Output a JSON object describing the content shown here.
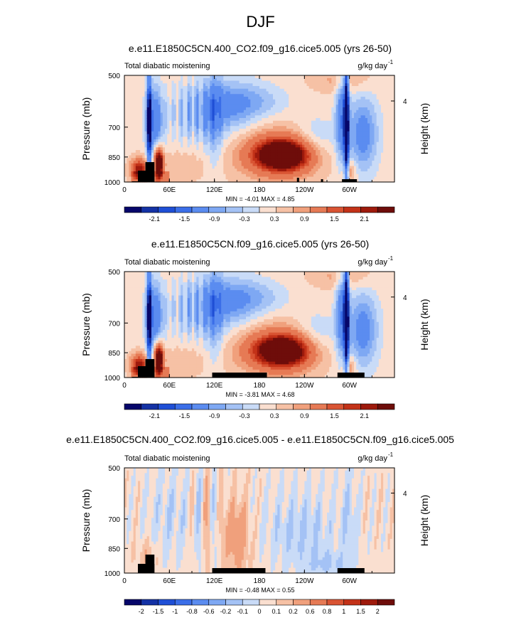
{
  "figure": {
    "season": "DJF"
  },
  "chart_data": [
    {
      "type": "heatmap",
      "title": "e.e11.E1850C5CN.400_CO2.f09_g16.cice5.005 (yrs 26-50)",
      "left_string": "Total diabatic moistening",
      "right_string": "g/kg day",
      "right_string_sup": "-1",
      "ylabel": "Pressure (mb)",
      "ylabel_right": "Height (km)",
      "x_ticks": [
        "0",
        "60E",
        "120E",
        "180",
        "120W",
        "60W"
      ],
      "x_tick_values": [
        0,
        60,
        120,
        180,
        240,
        300
      ],
      "xlim": [
        0,
        360
      ],
      "y_ticks": [
        "500",
        "700",
        "850",
        "1000"
      ],
      "y_tick_values": [
        500,
        700,
        850,
        1000
      ],
      "ylim": [
        1000,
        500
      ],
      "y_scale": "log",
      "height_ticks": [
        "4"
      ],
      "height_tick_values": [
        4
      ],
      "stats": "MIN = -4.01  MAX =  4.85",
      "colorbar_labels": [
        "-2.1",
        "-1.5",
        "-0.9",
        "-0.3",
        "0.3",
        "0.9",
        "1.5",
        "2.1"
      ],
      "levels": [
        -2.4,
        -2.1,
        -1.8,
        -1.5,
        -1.2,
        -0.9,
        -0.6,
        -0.3,
        0,
        0.3,
        0.6,
        0.9,
        1.2,
        1.5,
        1.8,
        2.1,
        2.4
      ],
      "min": -4.01,
      "max": 4.85
    },
    {
      "type": "heatmap",
      "title": "e.e11.E1850C5CN.f09_g16.cice5.005 (yrs 26-50)",
      "left_string": "Total diabatic moistening",
      "right_string": "g/kg day",
      "right_string_sup": "-1",
      "ylabel": "Pressure (mb)",
      "ylabel_right": "Height (km)",
      "x_ticks": [
        "0",
        "60E",
        "120E",
        "180",
        "120W",
        "60W"
      ],
      "x_tick_values": [
        0,
        60,
        120,
        180,
        240,
        300
      ],
      "xlim": [
        0,
        360
      ],
      "y_ticks": [
        "500",
        "700",
        "850",
        "1000"
      ],
      "y_tick_values": [
        500,
        700,
        850,
        1000
      ],
      "ylim": [
        1000,
        500
      ],
      "y_scale": "log",
      "height_ticks": [
        "4"
      ],
      "height_tick_values": [
        4
      ],
      "stats": "MIN = -3.81  MAX =  4.68",
      "colorbar_labels": [
        "-2.1",
        "-1.5",
        "-0.9",
        "-0.3",
        "0.3",
        "0.9",
        "1.5",
        "2.1"
      ],
      "levels": [
        -2.4,
        -2.1,
        -1.8,
        -1.5,
        -1.2,
        -0.9,
        -0.6,
        -0.3,
        0,
        0.3,
        0.6,
        0.9,
        1.2,
        1.5,
        1.8,
        2.1,
        2.4
      ],
      "min": -3.81,
      "max": 4.68
    },
    {
      "type": "heatmap",
      "title": "e.e11.E1850C5CN.400_CO2.f09_g16.cice5.005 - e.e11.E1850C5CN.f09_g16.cice5.005",
      "left_string": "Total diabatic moistening",
      "right_string": "g/kg day",
      "right_string_sup": "-1",
      "ylabel": "Pressure (mb)",
      "ylabel_right": "Height (km)",
      "x_ticks": [
        "0",
        "60E",
        "120E",
        "180",
        "120W",
        "60W"
      ],
      "x_tick_values": [
        0,
        60,
        120,
        180,
        240,
        300
      ],
      "xlim": [
        0,
        360
      ],
      "y_ticks": [
        "500",
        "700",
        "850",
        "1000"
      ],
      "y_tick_values": [
        500,
        700,
        850,
        1000
      ],
      "ylim": [
        1000,
        500
      ],
      "y_scale": "log",
      "height_ticks": [
        "4"
      ],
      "height_tick_values": [
        4
      ],
      "stats": "MIN = -0.48  MAX =  0.55",
      "colorbar_labels": [
        "-2",
        "-1.5",
        "-1",
        "-0.8",
        "-0.6",
        "-0.2",
        "-0.1",
        "0",
        "0.1",
        "0.2",
        "0.6",
        "0.8",
        "1",
        "1.5",
        "2"
      ],
      "levels": [
        -2,
        -1.5,
        -1,
        -0.8,
        -0.6,
        -0.2,
        -0.1,
        0,
        0.1,
        0.2,
        0.6,
        0.8,
        1,
        1.5,
        2
      ],
      "min": -0.48,
      "max": 0.55
    }
  ],
  "colors": {
    "palette": [
      "#06066a",
      "#1432a5",
      "#1f4fd6",
      "#3b6ee8",
      "#5b8cf0",
      "#7ea8f3",
      "#a4c2f5",
      "#c9dbf7",
      "#fadfd0",
      "#f6c1a5",
      "#f0a07c",
      "#e67a55",
      "#d95433",
      "#c33218",
      "#9e1a0c",
      "#6e0d0a"
    ],
    "topography": "#000000"
  }
}
